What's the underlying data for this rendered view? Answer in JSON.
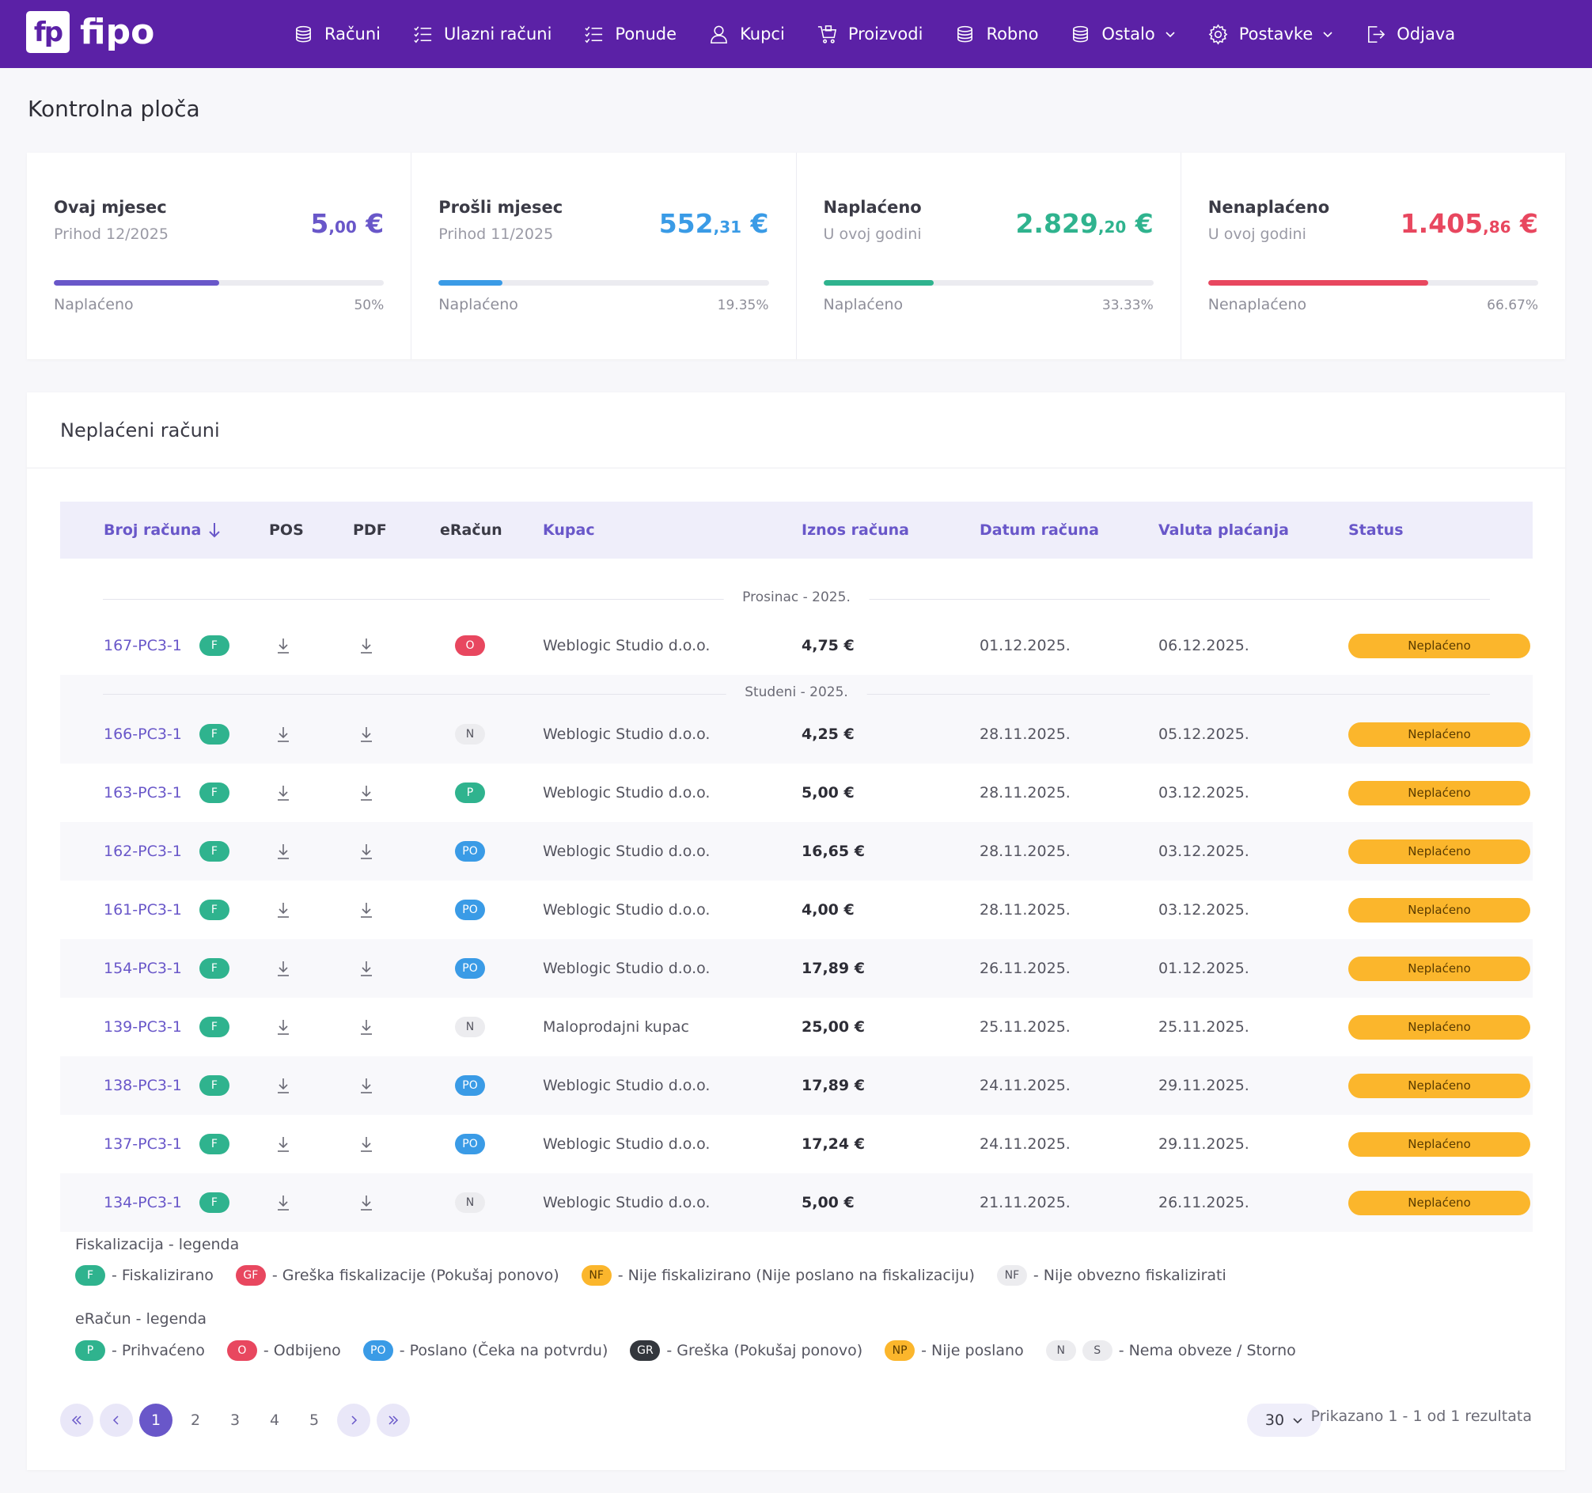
{
  "brand": {
    "logo_text": "fp",
    "name": "fipo"
  },
  "nav": [
    {
      "label": "Računi",
      "icon": "coins-icon"
    },
    {
      "label": "Ulazni računi",
      "icon": "checklist-icon"
    },
    {
      "label": "Ponude",
      "icon": "checklist-icon"
    },
    {
      "label": "Kupci",
      "icon": "user-icon"
    },
    {
      "label": "Proizvodi",
      "icon": "cart-icon"
    },
    {
      "label": "Robno",
      "icon": "coins-icon"
    },
    {
      "label": "Ostalo",
      "icon": "coins-icon",
      "dropdown": true
    },
    {
      "label": "Postavke",
      "icon": "gear-icon",
      "dropdown": true
    },
    {
      "label": "Odjava",
      "icon": "logout-icon"
    }
  ],
  "page_title": "Kontrolna ploča",
  "stats": [
    {
      "title": "Ovaj mjesec",
      "subtitle": "Prihod 12/2025",
      "value_main": "5",
      "value_dec": ",00",
      "value_cur": " €",
      "color": "#6957c9",
      "bar_label": "Naplaćeno",
      "percent_label": "50%",
      "fill": 0.5
    },
    {
      "title": "Prošli mjesec",
      "subtitle": "Prihod 11/2025",
      "value_main": "552",
      "value_dec": ",31",
      "value_cur": " €",
      "color": "#3a9be6",
      "bar_label": "Naplaćeno",
      "percent_label": "19.35%",
      "fill": 0.1935
    },
    {
      "title": "Naplaćeno",
      "subtitle": "U ovoj godini",
      "value_main": "2.829",
      "value_dec": ",20",
      "value_cur": " €",
      "color": "#2fb38e",
      "bar_label": "Naplaćeno",
      "percent_label": "33.33%",
      "fill": 0.3333
    },
    {
      "title": "Nenaplaćeno",
      "subtitle": "U ovoj godini",
      "value_main": "1.405",
      "value_dec": ",86",
      "value_cur": " €",
      "color": "#e8475f",
      "bar_label": "Nenaplaćeno",
      "percent_label": "66.67%",
      "fill": 0.6667
    }
  ],
  "unpaid": {
    "title": "Neplaćeni računi",
    "columns": {
      "broj": "Broj računa",
      "pos": "POS",
      "pdf": "PDF",
      "eracun": "eRačun",
      "kupac": "Kupac",
      "iznos": "Iznos računa",
      "datum": "Datum računa",
      "valuta": "Valuta plaćanja",
      "status": "Status"
    },
    "groups": [
      "Prosinac - 2025.",
      "Studeni - 2025."
    ],
    "rows": [
      {
        "num": "167-PC3-1",
        "fisk": "F",
        "er": "O",
        "kupac": "Weblogic Studio d.o.o.",
        "iznos": "4,75 €",
        "datum": "01.12.2025.",
        "valuta": "06.12.2025.",
        "status": "Neplaćeno"
      },
      {
        "num": "166-PC3-1",
        "fisk": "F",
        "er": "N",
        "kupac": "Weblogic Studio d.o.o.",
        "iznos": "4,25 €",
        "datum": "28.11.2025.",
        "valuta": "05.12.2025.",
        "status": "Neplaćeno"
      },
      {
        "num": "163-PC3-1",
        "fisk": "F",
        "er": "P",
        "kupac": "Weblogic Studio d.o.o.",
        "iznos": "5,00 €",
        "datum": "28.11.2025.",
        "valuta": "03.12.2025.",
        "status": "Neplaćeno"
      },
      {
        "num": "162-PC3-1",
        "fisk": "F",
        "er": "PO",
        "kupac": "Weblogic Studio d.o.o.",
        "iznos": "16,65 €",
        "datum": "28.11.2025.",
        "valuta": "03.12.2025.",
        "status": "Neplaćeno"
      },
      {
        "num": "161-PC3-1",
        "fisk": "F",
        "er": "PO",
        "kupac": "Weblogic Studio d.o.o.",
        "iznos": "4,00 €",
        "datum": "28.11.2025.",
        "valuta": "03.12.2025.",
        "status": "Neplaćeno"
      },
      {
        "num": "154-PC3-1",
        "fisk": "F",
        "er": "PO",
        "kupac": "Weblogic Studio d.o.o.",
        "iznos": "17,89 €",
        "datum": "26.11.2025.",
        "valuta": "01.12.2025.",
        "status": "Neplaćeno"
      },
      {
        "num": "139-PC3-1",
        "fisk": "F",
        "er": "N",
        "kupac": "Maloprodajni kupac",
        "iznos": "25,00 €",
        "datum": "25.11.2025.",
        "valuta": "25.11.2025.",
        "status": "Neplaćeno"
      },
      {
        "num": "138-PC3-1",
        "fisk": "F",
        "er": "PO",
        "kupac": "Weblogic Studio d.o.o.",
        "iznos": "17,89 €",
        "datum": "24.11.2025.",
        "valuta": "29.11.2025.",
        "status": "Neplaćeno"
      },
      {
        "num": "137-PC3-1",
        "fisk": "F",
        "er": "PO",
        "kupac": "Weblogic Studio d.o.o.",
        "iznos": "17,24 €",
        "datum": "24.11.2025.",
        "valuta": "29.11.2025.",
        "status": "Neplaćeno"
      },
      {
        "num": "134-PC3-1",
        "fisk": "F",
        "er": "N",
        "kupac": "Weblogic Studio d.o.o.",
        "iznos": "5,00 €",
        "datum": "21.11.2025.",
        "valuta": "26.11.2025.",
        "status": "Neplaćeno"
      }
    ]
  },
  "legend_fisk": {
    "title": "Fiskalizacija - legenda",
    "items": [
      {
        "badge": "F",
        "text": "- Fiskalizirano",
        "bg": "#2fb38e",
        "fg": "#ffffff"
      },
      {
        "badge": "GF",
        "text": "- Greška fiskalizacije (Pokušaj ponovo)",
        "bg": "#e8475f",
        "fg": "#ffffff"
      },
      {
        "badge": "NF",
        "text": "- Nije fiskalizirano (Nije poslano na fiskalizaciju)",
        "bg": "#fbb62c",
        "fg": "#5a3b00"
      },
      {
        "badge": "NF",
        "text": "- Nije obvezno fiskalizirati",
        "bg": "#ececef",
        "fg": "#555560"
      }
    ]
  },
  "legend_er": {
    "title": "eRačun - legenda",
    "items": [
      {
        "badge": "P",
        "text": "- Prihvaćeno",
        "bg": "#2fb38e",
        "fg": "#ffffff"
      },
      {
        "badge": "O",
        "text": "- Odbijeno",
        "bg": "#e8475f",
        "fg": "#ffffff"
      },
      {
        "badge": "PO",
        "text": "- Poslano (Čeka na potvrdu)",
        "bg": "#3a9be6",
        "fg": "#ffffff"
      },
      {
        "badge": "GR",
        "text": "- Greška (Pokušaj ponovo)",
        "bg": "#33373d",
        "fg": "#ffffff"
      },
      {
        "badge": "NP",
        "text": "- Nije poslano",
        "bg": "#fbb62c",
        "fg": "#5a3b00"
      },
      {
        "badge": "N",
        "badge2": "S",
        "text": "- Nema obveze / Storno",
        "bg": "#ececef",
        "fg": "#555560"
      }
    ]
  },
  "pagination": {
    "pages": [
      "1",
      "2",
      "3",
      "4",
      "5"
    ],
    "active": "1",
    "per_page": "30",
    "showing": "Prikazano 1 - 1 od 1 rezultata"
  }
}
